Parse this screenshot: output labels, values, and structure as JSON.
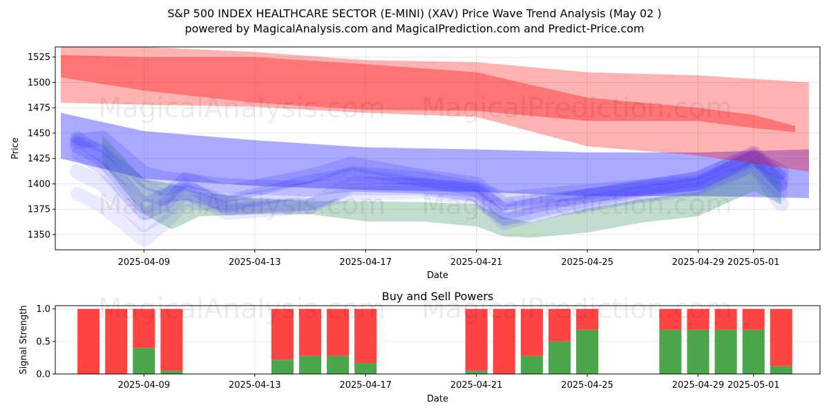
{
  "chart_data": [
    {
      "type": "area",
      "title_line1": "S&P 500 INDEX HEALTHCARE SECTOR (E-MINI) (XAV) Price Wave Trend Analysis (May 02 )",
      "title_line2": "powered by MagicalAnalysis.com and MagicalPrediction.com and Predict-Price.com",
      "xlabel": "Date",
      "ylabel": "Price",
      "xlim": [
        -3.2,
        24.4
      ],
      "ylim": [
        1335,
        1535
      ],
      "xticks": [
        {
          "day": 0,
          "label": "2025-04-09"
        },
        {
          "day": 4,
          "label": "2025-04-13"
        },
        {
          "day": 8,
          "label": "2025-04-17"
        },
        {
          "day": 12,
          "label": "2025-04-21"
        },
        {
          "day": 16,
          "label": "2025-04-25"
        },
        {
          "day": 20,
          "label": "2025-04-29"
        },
        {
          "day": 22,
          "label": "2025-05-01"
        }
      ],
      "yticks": [
        1350,
        1375,
        1400,
        1425,
        1450,
        1475,
        1500,
        1525
      ],
      "grid": true,
      "watermarks": [
        "MagicalAnalysis.com",
        "MagicalPrediction.com",
        "MagicalAnalysis.com",
        "MagicalPrediction.com"
      ],
      "red_bands": [
        {
          "x": [
            -3,
            0,
            4,
            8,
            12,
            16,
            20,
            24
          ],
          "lower": [
            1480,
            1478,
            1476,
            1470,
            1466,
            1437,
            1428,
            1412
          ],
          "upper": [
            1540,
            1535,
            1530,
            1522,
            1520,
            1510,
            1507,
            1500
          ],
          "color": "#ff0000",
          "opacity": 0.3
        },
        {
          "x": [
            -3,
            0,
            4,
            8,
            12,
            16,
            20,
            22,
            23.5
          ],
          "lower": [
            1505,
            1492,
            1480,
            1473,
            1472,
            1462,
            1462,
            1455,
            1451
          ],
          "upper": [
            1527,
            1525,
            1525,
            1518,
            1510,
            1485,
            1475,
            1468,
            1457
          ],
          "color": "#ff0000",
          "opacity": 0.35
        }
      ],
      "blue_channel": {
        "x": [
          -3,
          0,
          4,
          8,
          12,
          16,
          20,
          24
        ],
        "lower": [
          1425,
          1405,
          1398,
          1394,
          1392,
          1388,
          1388,
          1386
        ],
        "upper": [
          1470,
          1452,
          1443,
          1436,
          1434,
          1431,
          1431,
          1434
        ],
        "color": "#4040ff",
        "opacity": 0.45
      },
      "green_band": {
        "x": [
          -1.5,
          0,
          1,
          2,
          4,
          6,
          8,
          10,
          12,
          13,
          14,
          16,
          18,
          20,
          22,
          23
        ],
        "lower": [
          1420,
          1370,
          1355,
          1368,
          1370,
          1370,
          1363,
          1363,
          1358,
          1348,
          1347,
          1352,
          1362,
          1368,
          1393,
          1380
        ],
        "upper": [
          1448,
          1405,
          1400,
          1392,
          1386,
          1383,
          1383,
          1382,
          1380,
          1367,
          1362,
          1376,
          1385,
          1392,
          1425,
          1403
        ],
        "color": "#2e8b57",
        "opacity": 0.3
      },
      "wave_lines": [
        {
          "x": [
            -2.4,
            -1.5,
            0,
            0.7,
            1.5,
            3,
            6,
            7.5,
            10,
            12,
            13,
            15,
            18,
            20,
            22,
            23
          ],
          "y": [
            1442,
            1445,
            1410,
            1405,
            1403,
            1398,
            1395,
            1400,
            1398,
            1394,
            1385,
            1390,
            1397,
            1401,
            1425,
            1412
          ],
          "width": 22,
          "opacity": 0.18
        },
        {
          "x": [
            -2.4,
            -1.5,
            0,
            0.7,
            1.5,
            3,
            6,
            7.5,
            10,
            12,
            13,
            15,
            18,
            20,
            22,
            23
          ],
          "y": [
            1445,
            1428,
            1390,
            1385,
            1405,
            1392,
            1408,
            1420,
            1408,
            1400,
            1380,
            1385,
            1395,
            1400,
            1427,
            1400
          ],
          "width": 20,
          "opacity": 0.18
        },
        {
          "x": [
            -2.4,
            -1.5,
            0,
            0.7,
            1.5,
            3,
            6,
            7.5,
            10,
            12,
            13,
            15,
            18,
            20,
            22,
            23
          ],
          "y": [
            1438,
            1424,
            1378,
            1388,
            1392,
            1380,
            1395,
            1410,
            1405,
            1395,
            1372,
            1384,
            1396,
            1405,
            1430,
            1405
          ],
          "width": 22,
          "opacity": 0.18
        },
        {
          "x": [
            -2.4,
            -1.5,
            0,
            0.7,
            1.5,
            3,
            6,
            7.5,
            10,
            12,
            13,
            15,
            18,
            20,
            22,
            23
          ],
          "y": [
            1430,
            1415,
            1370,
            1378,
            1400,
            1375,
            1380,
            1395,
            1395,
            1388,
            1365,
            1378,
            1393,
            1400,
            1428,
            1398
          ],
          "width": 18,
          "opacity": 0.16
        },
        {
          "x": [
            -2.4,
            -1.5,
            0,
            0.7,
            1.5,
            3,
            6,
            7.5,
            10,
            12,
            13,
            15,
            18,
            20,
            22,
            23
          ],
          "y": [
            1412,
            1400,
            1360,
            1372,
            1392,
            1372,
            1378,
            1400,
            1398,
            1390,
            1362,
            1376,
            1390,
            1398,
            1420,
            1380
          ],
          "width": 22,
          "opacity": 0.12
        },
        {
          "x": [
            -2.4,
            -1.5,
            0,
            0.7,
            1.5,
            3,
            6,
            7.5,
            10,
            12,
            13,
            15,
            18,
            20,
            22,
            23
          ],
          "y": [
            1390,
            1378,
            1345,
            1360,
            1383,
            1378,
            1380,
            1390,
            1392,
            1385,
            1365,
            1375,
            1388,
            1395,
            1418,
            1390
          ],
          "width": 20,
          "opacity": 0.1
        },
        {
          "x": [
            -2.4,
            -1.5,
            0,
            0.7,
            1.5,
            3,
            6,
            7.5,
            10,
            12,
            13,
            15,
            18,
            20,
            22,
            23
          ],
          "y": [
            1443,
            1435,
            1400,
            1392,
            1398,
            1385,
            1405,
            1412,
            1402,
            1396,
            1378,
            1386,
            1400,
            1408,
            1432,
            1408
          ],
          "width": 12,
          "opacity": 0.2
        }
      ]
    },
    {
      "type": "bar",
      "title": "Buy and Sell Powers",
      "xlabel": "Date",
      "ylabel": "Signal Strength",
      "ylim": [
        0,
        1.05
      ],
      "yticks": [
        0.0,
        0.5,
        1.0
      ],
      "ytick_labels": [
        "0.0",
        "0.5",
        "1.0"
      ],
      "xticks": [
        {
          "day": 0,
          "label": "2025-04-09"
        },
        {
          "day": 4,
          "label": "2025-04-13"
        },
        {
          "day": 8,
          "label": "2025-04-17"
        },
        {
          "day": 12,
          "label": "2025-04-21"
        },
        {
          "day": 16,
          "label": "2025-04-25"
        },
        {
          "day": 20,
          "label": "2025-04-29"
        },
        {
          "day": 22,
          "label": "2025-05-01"
        }
      ],
      "days": [
        -2,
        -1,
        0,
        1,
        5,
        6,
        7,
        8,
        12,
        13,
        14,
        15,
        16,
        19,
        20,
        21,
        22,
        23
      ],
      "buy": [
        0.0,
        0.0,
        0.4,
        0.05,
        0.22,
        0.28,
        0.28,
        0.17,
        0.05,
        0.0,
        0.28,
        0.5,
        0.68,
        0.68,
        0.68,
        0.68,
        0.68,
        0.12
      ],
      "sell_total": 1.0,
      "buy_color": "#4ca64c",
      "sell_color": "#ff4444"
    }
  ]
}
